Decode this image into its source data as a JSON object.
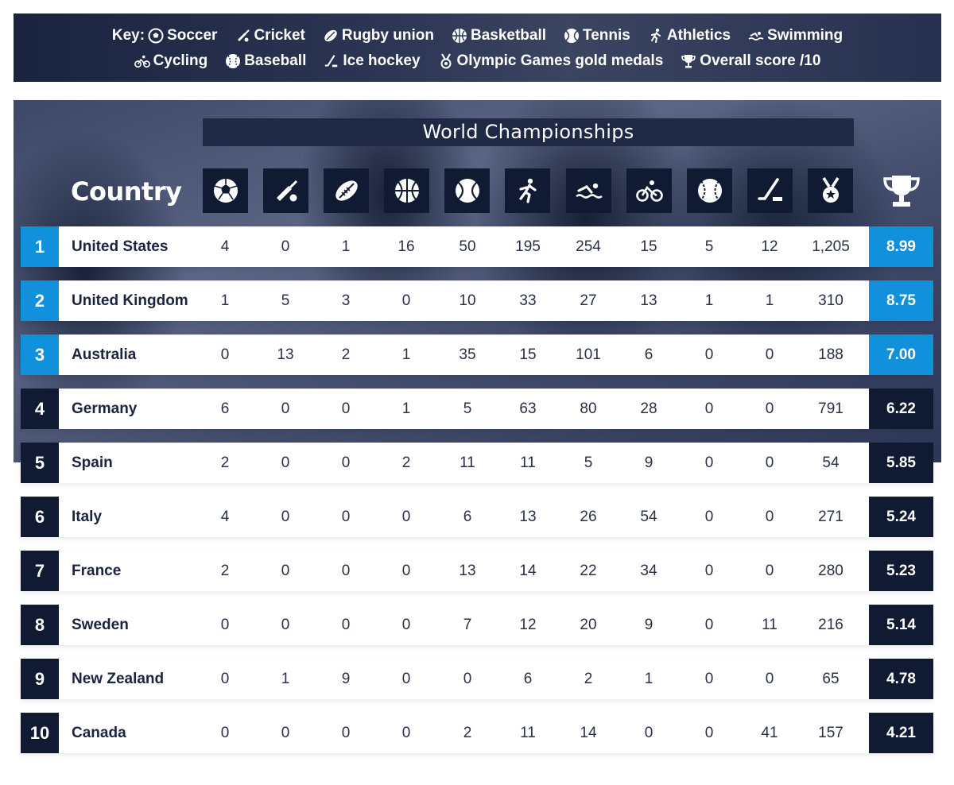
{
  "key": {
    "label": "Key:",
    "items": [
      {
        "icon": "soccer-icon",
        "label": "Soccer"
      },
      {
        "icon": "cricket-icon",
        "label": "Cricket"
      },
      {
        "icon": "rugby-icon",
        "label": "Rugby union"
      },
      {
        "icon": "basketball-icon",
        "label": "Basketball"
      },
      {
        "icon": "tennis-icon",
        "label": "Tennis"
      },
      {
        "icon": "athletics-icon",
        "label": "Athletics"
      },
      {
        "icon": "swimming-icon",
        "label": "Swimming"
      },
      {
        "icon": "cycling-icon",
        "label": "Cycling"
      },
      {
        "icon": "baseball-icon",
        "label": "Baseball"
      },
      {
        "icon": "ice-hockey-icon",
        "label": "Ice hockey"
      },
      {
        "icon": "medal-icon",
        "label": "Olympic Games gold medals"
      },
      {
        "icon": "trophy-icon",
        "label": "Overall score /10"
      }
    ]
  },
  "table": {
    "group_header": "World Championships",
    "country_header": "Country",
    "highlight_color": "#1190dc",
    "base_color": "#111a33",
    "rows": [
      {
        "rank": "1",
        "country": "United States",
        "values": [
          "4",
          "0",
          "1",
          "16",
          "50",
          "195",
          "254",
          "15",
          "5",
          "12",
          "1,205"
        ],
        "score": "8.99",
        "highlight": true
      },
      {
        "rank": "2",
        "country": "United Kingdom",
        "values": [
          "1",
          "5",
          "3",
          "0",
          "10",
          "33",
          "27",
          "13",
          "1",
          "1",
          "310"
        ],
        "score": "8.75",
        "highlight": true
      },
      {
        "rank": "3",
        "country": "Australia",
        "values": [
          "0",
          "13",
          "2",
          "1",
          "35",
          "15",
          "101",
          "6",
          "0",
          "0",
          "188"
        ],
        "score": "7.00",
        "highlight": true
      },
      {
        "rank": "4",
        "country": "Germany",
        "values": [
          "6",
          "0",
          "0",
          "1",
          "5",
          "63",
          "80",
          "28",
          "0",
          "0",
          "791"
        ],
        "score": "6.22",
        "highlight": false
      },
      {
        "rank": "5",
        "country": "Spain",
        "values": [
          "2",
          "0",
          "0",
          "2",
          "11",
          "11",
          "5",
          "9",
          "0",
          "0",
          "54"
        ],
        "score": "5.85",
        "highlight": false
      },
      {
        "rank": "6",
        "country": "Italy",
        "values": [
          "4",
          "0",
          "0",
          "0",
          "6",
          "13",
          "26",
          "54",
          "0",
          "0",
          "271"
        ],
        "score": "5.24",
        "highlight": false
      },
      {
        "rank": "7",
        "country": "France",
        "values": [
          "2",
          "0",
          "0",
          "0",
          "13",
          "14",
          "22",
          "34",
          "0",
          "0",
          "280"
        ],
        "score": "5.23",
        "highlight": false
      },
      {
        "rank": "8",
        "country": "Sweden",
        "values": [
          "0",
          "0",
          "0",
          "0",
          "7",
          "12",
          "20",
          "9",
          "0",
          "11",
          "216"
        ],
        "score": "5.14",
        "highlight": false
      },
      {
        "rank": "9",
        "country": "New Zealand",
        "values": [
          "0",
          "1",
          "9",
          "0",
          "0",
          "6",
          "2",
          "1",
          "0",
          "0",
          "65"
        ],
        "score": "4.78",
        "highlight": false
      },
      {
        "rank": "10",
        "country": "Canada",
        "values": [
          "0",
          "0",
          "0",
          "0",
          "2",
          "11",
          "14",
          "0",
          "0",
          "41",
          "157"
        ],
        "score": "4.21",
        "highlight": false
      }
    ]
  }
}
